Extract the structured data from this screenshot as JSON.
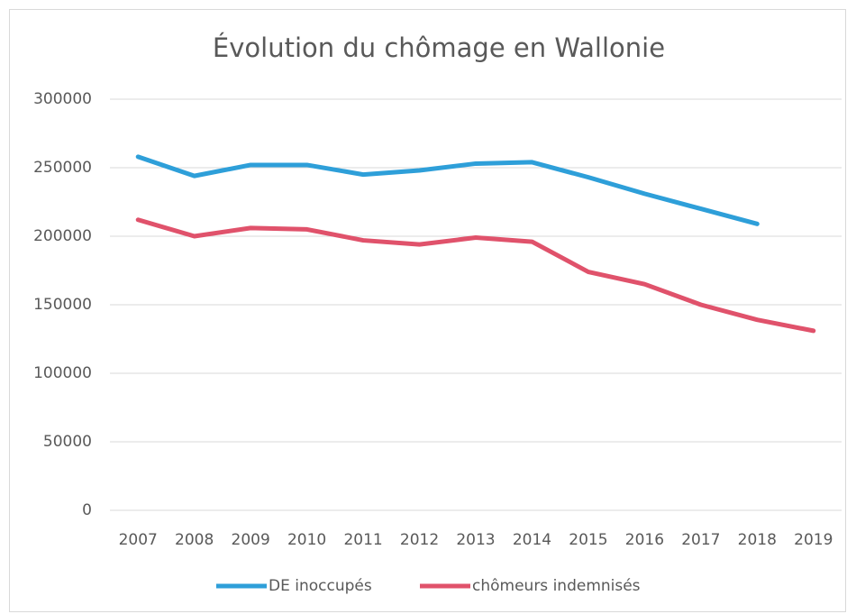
{
  "chart_data": {
    "type": "line",
    "title": "Évolution du chômage en Wallonie",
    "categories": [
      "2007",
      "2008",
      "2009",
      "2010",
      "2011",
      "2012",
      "2013",
      "2014",
      "2015",
      "2016",
      "2017",
      "2018",
      "2019"
    ],
    "series": [
      {
        "name": "DE inoccupés",
        "color": "#2e9fd9",
        "values": [
          258000,
          244000,
          252000,
          252000,
          245000,
          248000,
          253000,
          254000,
          243000,
          231000,
          220000,
          209000,
          null
        ]
      },
      {
        "name": "chômeurs indemnisés",
        "color": "#e0526b",
        "values": [
          212000,
          200000,
          206000,
          205000,
          197000,
          194000,
          199000,
          196000,
          174000,
          165000,
          150000,
          139000,
          131000
        ]
      }
    ],
    "ylim": [
      0,
      300000
    ],
    "yticks": [
      0,
      50000,
      100000,
      150000,
      200000,
      250000,
      300000
    ],
    "grid": true,
    "legend": "bottom"
  }
}
